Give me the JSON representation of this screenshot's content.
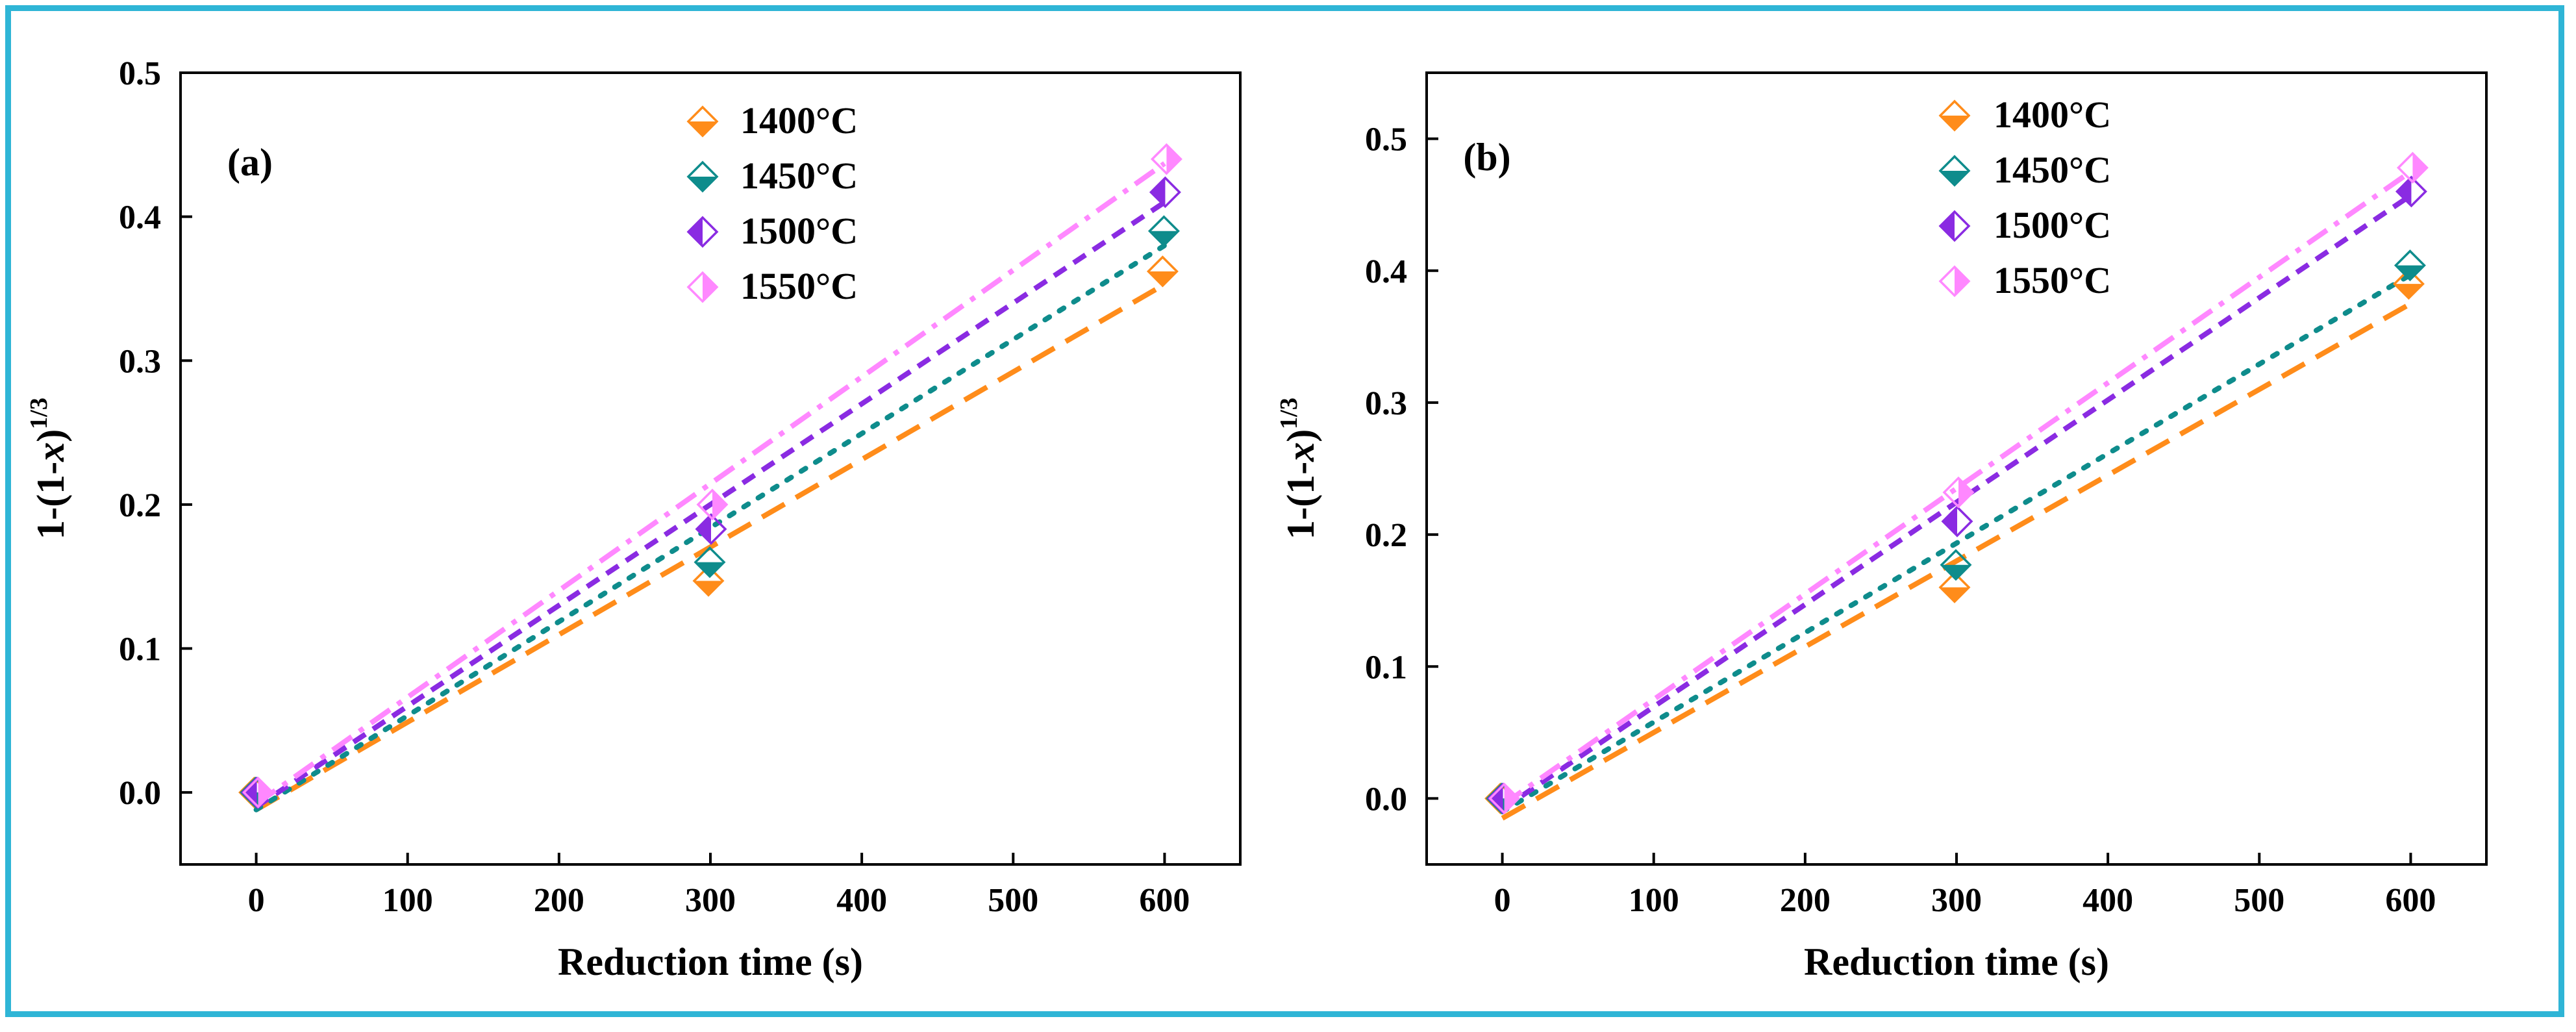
{
  "figure": {
    "border_color": "#2fb5d6"
  },
  "chart_data": [
    {
      "panel_label": "(a)",
      "type": "scatter",
      "xlabel": "Reduction time (s)",
      "ylabel": "1-(1-x)",
      "ylabel_superscript": "1/3",
      "xlim": [
        -50,
        650
      ],
      "ylim": [
        -0.05,
        0.5
      ],
      "xticks": [
        0,
        100,
        200,
        300,
        400,
        500,
        600
      ],
      "xtick_labels": [
        "0",
        "100",
        "200",
        "300",
        "400",
        "500",
        "600"
      ],
      "yticks": [
        0.0,
        0.1,
        0.2,
        0.3,
        0.4,
        0.5
      ],
      "ytick_labels": [
        "0.0",
        "0.1",
        "0.2",
        "0.3",
        "0.4",
        "0.5"
      ],
      "legend_position": "top-right",
      "series": [
        {
          "name": "1400°C",
          "color": "#ff8c1a",
          "half": "bottom",
          "dash": "long-dash",
          "x": [
            0,
            300,
            600
          ],
          "y": [
            0.0,
            0.147,
            0.362
          ],
          "fit": [
            [
              0,
              -0.012
            ],
            [
              600,
              0.353
            ]
          ]
        },
        {
          "name": "1450°C",
          "color": "#0e8c8c",
          "half": "bottom",
          "dash": "dot",
          "x": [
            0,
            300,
            600
          ],
          "y": [
            0.0,
            0.16,
            0.39
          ],
          "fit": [
            [
              0,
              -0.012
            ],
            [
              600,
              0.38
            ]
          ]
        },
        {
          "name": "1500°C",
          "color": "#8a2be2",
          "half": "left",
          "dash": "short-dash",
          "x": [
            0,
            300,
            600
          ],
          "y": [
            0.0,
            0.183,
            0.417
          ],
          "fit": [
            [
              0,
              -0.01
            ],
            [
              600,
              0.41
            ]
          ]
        },
        {
          "name": "1550°C",
          "color": "#ff88ff",
          "half": "right",
          "dash": "dash-dot",
          "x": [
            0,
            300,
            600
          ],
          "y": [
            0.0,
            0.2,
            0.44
          ],
          "fit": [
            [
              0,
              -0.008
            ],
            [
              600,
              0.437
            ]
          ]
        }
      ]
    },
    {
      "panel_label": "(b)",
      "type": "scatter",
      "xlabel": "Reduction time (s)",
      "ylabel": "1-(1-x)",
      "ylabel_superscript": "1/3",
      "xlim": [
        -50,
        650
      ],
      "ylim": [
        -0.05,
        0.55
      ],
      "xticks": [
        0,
        100,
        200,
        300,
        400,
        500,
        600
      ],
      "xtick_labels": [
        "0",
        "100",
        "200",
        "300",
        "400",
        "500",
        "600"
      ],
      "yticks": [
        0.0,
        0.1,
        0.2,
        0.3,
        0.4,
        0.5
      ],
      "ytick_labels": [
        "0.0",
        "0.1",
        "0.2",
        "0.3",
        "0.4",
        "0.5"
      ],
      "legend_position": "top-center",
      "series": [
        {
          "name": "1400°C",
          "color": "#ff8c1a",
          "half": "bottom",
          "dash": "long-dash",
          "x": [
            0,
            300,
            600
          ],
          "y": [
            0.0,
            0.16,
            0.39
          ],
          "fit": [
            [
              0,
              -0.015
            ],
            [
              600,
              0.375
            ]
          ]
        },
        {
          "name": "1450°C",
          "color": "#0e8c8c",
          "half": "bottom",
          "dash": "dot",
          "x": [
            0,
            300,
            600
          ],
          "y": [
            0.0,
            0.177,
            0.404
          ],
          "fit": [
            [
              0,
              -0.01
            ],
            [
              600,
              0.397
            ]
          ]
        },
        {
          "name": "1500°C",
          "color": "#8a2be2",
          "half": "left",
          "dash": "short-dash",
          "x": [
            0,
            300,
            600
          ],
          "y": [
            0.0,
            0.21,
            0.46
          ],
          "fit": [
            [
              0,
              -0.008
            ],
            [
              600,
              0.457
            ]
          ]
        },
        {
          "name": "1550°C",
          "color": "#ff88ff",
          "half": "right",
          "dash": "dash-dot",
          "x": [
            0,
            300,
            600
          ],
          "y": [
            0.0,
            0.232,
            0.478
          ],
          "fit": [
            [
              0,
              -0.005
            ],
            [
              600,
              0.475
            ]
          ]
        }
      ]
    }
  ]
}
